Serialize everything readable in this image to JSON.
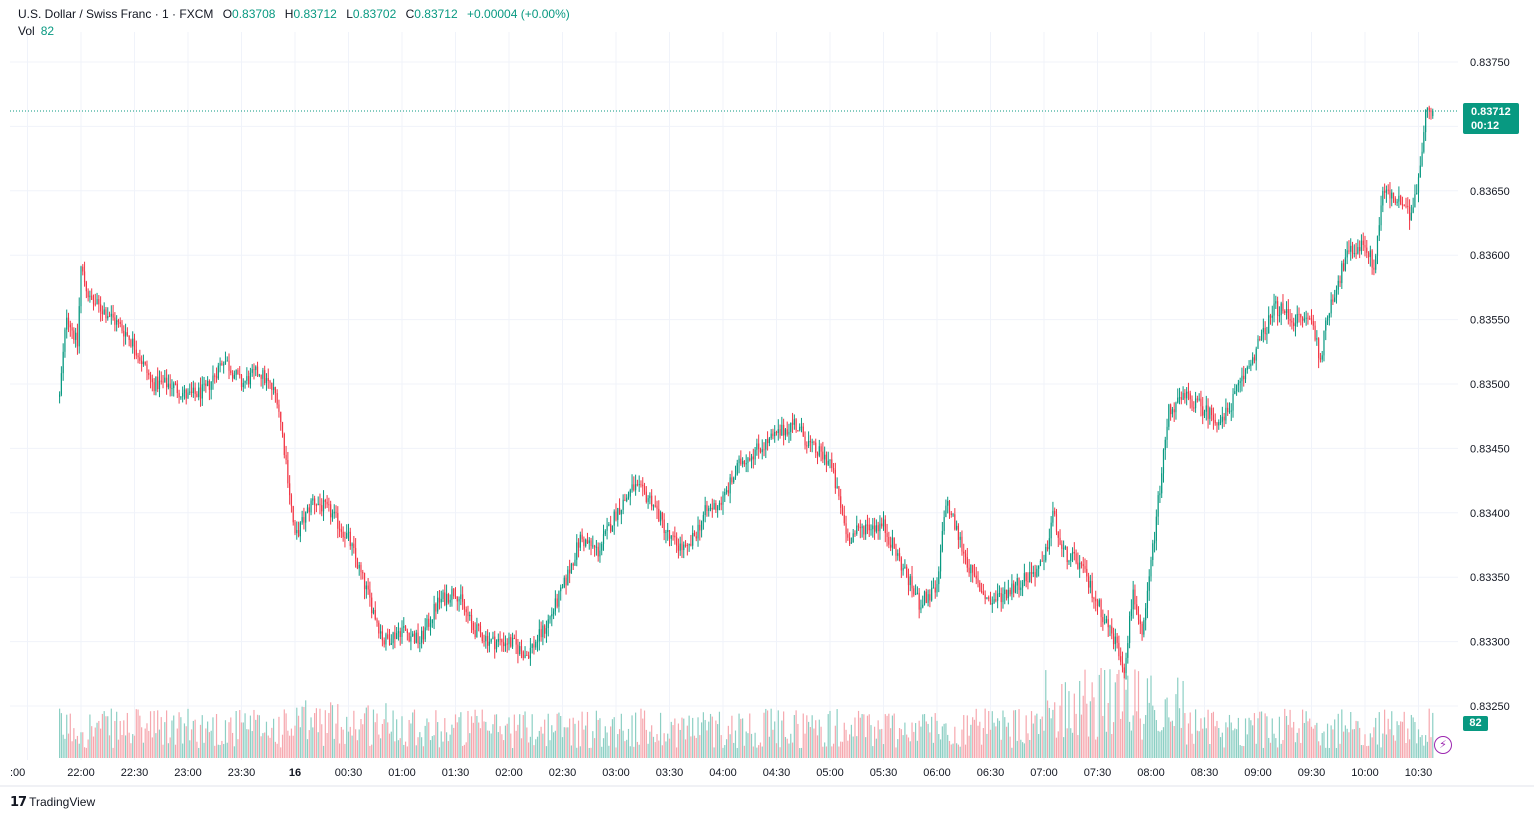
{
  "legend": {
    "symbol": "U.S. Dollar / Swiss Franc · 1 · FXCM",
    "open_label": "O",
    "open": "0.83708",
    "high_label": "H",
    "high": "0.83712",
    "low_label": "L",
    "low": "0.83702",
    "close_label": "C",
    "close": "0.83712",
    "change": "+0.00004 (+0.00%)",
    "vol_label": "Vol",
    "vol": "82"
  },
  "price_tag": {
    "price": "0.83712",
    "countdown": "00:12"
  },
  "vol_tag": "82",
  "branding": {
    "logo_mark": "17",
    "name": "TradingView"
  },
  "colors": {
    "up": "#089981",
    "down": "#f23645",
    "up_vol": "#8ccfc4",
    "down_vol": "#f6a7ae",
    "grid": "#f0f3fa",
    "last_price_line": "#089981"
  },
  "chart_data": {
    "type": "candlestick",
    "interval": "1",
    "y_axis": {
      "range": [
        0.8323,
        0.8377
      ],
      "ticks": [
        "0.83250",
        "0.83300",
        "0.83350",
        "0.83400",
        "0.83450",
        "0.83500",
        "0.83550",
        "0.83600",
        "0.83650",
        "0.83700",
        "0.83750"
      ],
      "position": "right"
    },
    "x_axis": {
      "ticks": [
        ":00",
        "22:00",
        "22:30",
        "23:00",
        "23:30",
        "16",
        "00:30",
        "01:00",
        "01:30",
        "02:00",
        "02:30",
        "03:00",
        "03:30",
        "04:00",
        "04:30",
        "05:00",
        "05:30",
        "06:00",
        "06:30",
        "07:00",
        "07:30",
        "08:00",
        "08:30",
        "09:00",
        "09:30",
        "10:00",
        "10:30"
      ],
      "bold_ticks": [
        "16"
      ]
    },
    "grid": true,
    "last_price": 0.83712,
    "close_path": [
      [
        "21:48",
        0.8349
      ],
      [
        "21:52",
        0.83555
      ],
      [
        "21:58",
        0.8353
      ],
      [
        "22:00",
        0.8359
      ],
      [
        "22:05",
        0.83565
      ],
      [
        "22:15",
        0.83555
      ],
      [
        "22:25",
        0.8354
      ],
      [
        "22:30",
        0.8353
      ],
      [
        "22:40",
        0.835
      ],
      [
        "22:50",
        0.835
      ],
      [
        "23:00",
        0.8349
      ],
      [
        "23:10",
        0.83495
      ],
      [
        "23:20",
        0.8352
      ],
      [
        "23:30",
        0.835
      ],
      [
        "23:40",
        0.8351
      ],
      [
        "23:50",
        0.8349
      ],
      [
        "23:55",
        0.8344
      ],
      [
        "00:00",
        0.8338
      ],
      [
        "00:10",
        0.8341
      ],
      [
        "00:20",
        0.834
      ],
      [
        "00:30",
        0.8338
      ],
      [
        "00:40",
        0.8334
      ],
      [
        "00:50",
        0.833
      ],
      [
        "01:00",
        0.8331
      ],
      [
        "01:10",
        0.833
      ],
      [
        "01:20",
        0.8333
      ],
      [
        "01:30",
        0.8334
      ],
      [
        "01:40",
        0.8331
      ],
      [
        "01:50",
        0.833
      ],
      [
        "02:00",
        0.833
      ],
      [
        "02:10",
        0.8329
      ],
      [
        "02:20",
        0.8331
      ],
      [
        "02:30",
        0.8334
      ],
      [
        "02:40",
        0.8338
      ],
      [
        "02:50",
        0.8337
      ],
      [
        "03:00",
        0.834
      ],
      [
        "03:10",
        0.8342
      ],
      [
        "03:20",
        0.8341
      ],
      [
        "03:30",
        0.8338
      ],
      [
        "03:40",
        0.8337
      ],
      [
        "03:50",
        0.834
      ],
      [
        "04:00",
        0.8341
      ],
      [
        "04:10",
        0.8344
      ],
      [
        "04:20",
        0.8345
      ],
      [
        "04:30",
        0.8346
      ],
      [
        "04:40",
        0.8347
      ],
      [
        "04:50",
        0.8345
      ],
      [
        "05:00",
        0.8344
      ],
      [
        "05:10",
        0.8338
      ],
      [
        "05:20",
        0.8339
      ],
      [
        "05:30",
        0.8339
      ],
      [
        "05:40",
        0.8336
      ],
      [
        "05:50",
        0.8333
      ],
      [
        "06:00",
        0.8334
      ],
      [
        "06:05",
        0.8341
      ],
      [
        "06:10",
        0.8339
      ],
      [
        "06:20",
        0.8335
      ],
      [
        "06:30",
        0.8333
      ],
      [
        "06:40",
        0.8334
      ],
      [
        "06:50",
        0.8335
      ],
      [
        "07:00",
        0.8336
      ],
      [
        "07:05",
        0.834
      ],
      [
        "07:10",
        0.8337
      ],
      [
        "07:20",
        0.8336
      ],
      [
        "07:30",
        0.8333
      ],
      [
        "07:40",
        0.833
      ],
      [
        "07:45",
        0.8328
      ],
      [
        "07:50",
        0.8334
      ],
      [
        "07:55",
        0.833
      ],
      [
        "08:00",
        0.8336
      ],
      [
        "08:05",
        0.8342
      ],
      [
        "08:10",
        0.8348
      ],
      [
        "08:20",
        0.8349
      ],
      [
        "08:30",
        0.8348
      ],
      [
        "08:40",
        0.8347
      ],
      [
        "08:50",
        0.835
      ],
      [
        "09:00",
        0.8353
      ],
      [
        "09:10",
        0.8356
      ],
      [
        "09:20",
        0.8355
      ],
      [
        "09:30",
        0.8355
      ],
      [
        "09:35",
        0.8352
      ],
      [
        "09:40",
        0.8356
      ],
      [
        "09:50",
        0.836
      ],
      [
        "10:00",
        0.8361
      ],
      [
        "10:05",
        0.8359
      ],
      [
        "10:10",
        0.8365
      ],
      [
        "10:20",
        0.8364
      ],
      [
        "10:25",
        0.8363
      ],
      [
        "10:30",
        0.8366
      ],
      [
        "10:35",
        0.8372
      ],
      [
        "10:38",
        0.83712
      ]
    ],
    "volume": {
      "last": 82
    }
  }
}
